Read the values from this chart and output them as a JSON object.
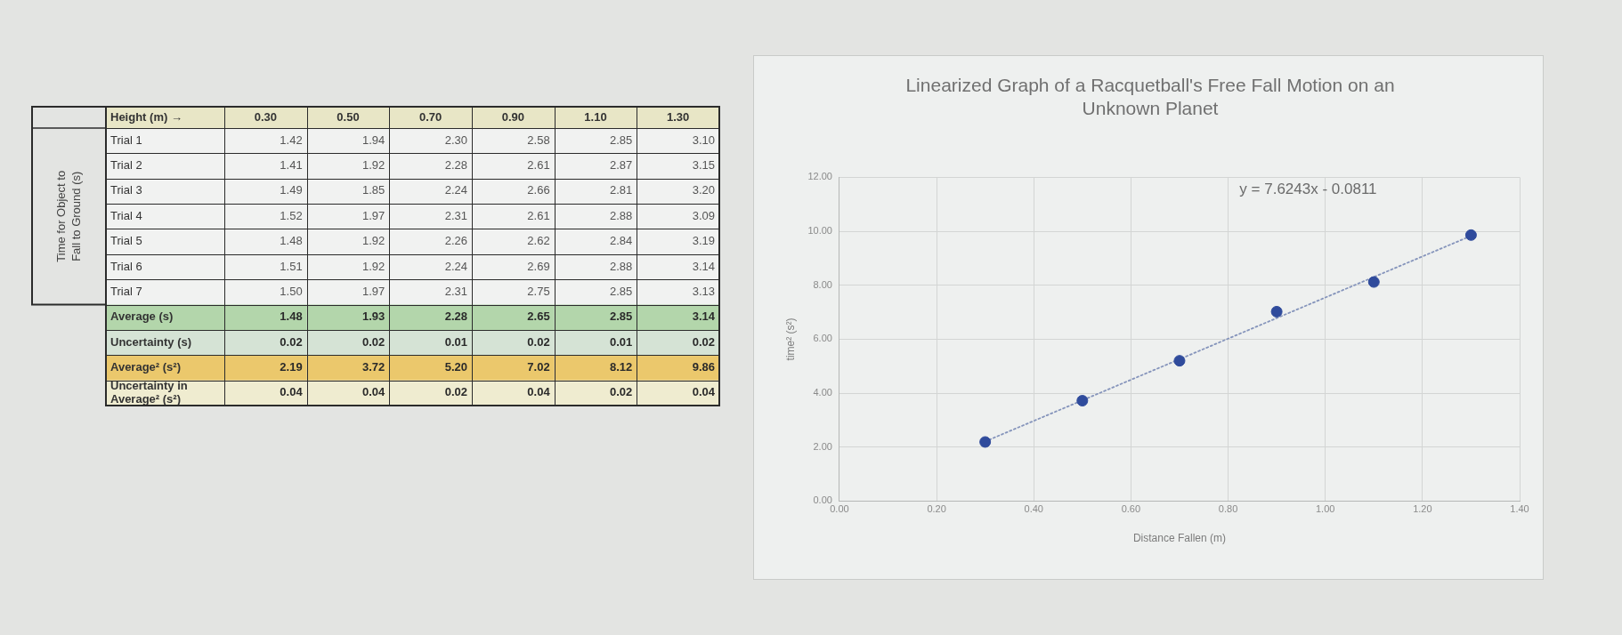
{
  "chart_data": [
    {
      "type": "heatmap",
      "xlabel": "Height (m) →",
      "ylabel": "Time for Object to Fall to Ground (s)",
      "categories": [
        "0.30",
        "0.50",
        "0.70",
        "0.90",
        "1.10",
        "1.30"
      ],
      "y_categories": [
        "Trial 1",
        "Trial 2",
        "Trial 3",
        "Trial 4",
        "Trial 5",
        "Trial 6",
        "Trial 7",
        "Average (s)",
        "Uncertainty (s)",
        "Average² (s²)",
        "Uncertainty in Average² (s²)"
      ],
      "cells": [
        [
          1.42,
          1.94,
          2.3,
          2.58,
          2.85,
          3.1
        ],
        [
          1.41,
          1.92,
          2.28,
          2.61,
          2.87,
          3.15
        ],
        [
          1.49,
          1.85,
          2.24,
          2.66,
          2.81,
          3.2
        ],
        [
          1.52,
          1.97,
          2.31,
          2.61,
          2.88,
          3.09
        ],
        [
          1.48,
          1.92,
          2.26,
          2.62,
          2.84,
          3.19
        ],
        [
          1.51,
          1.92,
          2.24,
          2.69,
          2.88,
          3.14
        ],
        [
          1.5,
          1.97,
          2.31,
          2.75,
          2.85,
          3.13
        ],
        [
          1.48,
          1.93,
          2.28,
          2.65,
          2.85,
          3.14
        ],
        [
          0.02,
          0.02,
          0.01,
          0.02,
          0.01,
          0.02
        ],
        [
          2.19,
          3.72,
          5.2,
          7.02,
          8.12,
          9.86
        ],
        [
          0.04,
          0.04,
          0.02,
          0.04,
          0.02,
          0.04
        ]
      ],
      "cell_labels": [
        [
          "1.42",
          "1.94",
          "2.30",
          "2.58",
          "2.85",
          "3.10"
        ],
        [
          "1.41",
          "1.92",
          "2.28",
          "2.61",
          "2.87",
          "3.15"
        ],
        [
          "1.49",
          "1.85",
          "2.24",
          "2.66",
          "2.81",
          "3.20"
        ],
        [
          "1.52",
          "1.97",
          "2.31",
          "2.61",
          "2.88",
          "3.09"
        ],
        [
          "1.48",
          "1.92",
          "2.26",
          "2.62",
          "2.84",
          "3.19"
        ],
        [
          "1.51",
          "1.92",
          "2.24",
          "2.69",
          "2.88",
          "3.14"
        ],
        [
          "1.50",
          "1.97",
          "2.31",
          "2.75",
          "2.85",
          "3.13"
        ],
        [
          "1.48",
          "1.93",
          "2.28",
          "2.65",
          "2.85",
          "3.14"
        ],
        [
          "0.02",
          "0.02",
          "0.01",
          "0.02",
          "0.01",
          "0.02"
        ],
        [
          "2.19",
          "3.72",
          "5.20",
          "7.02",
          "8.12",
          "9.86"
        ],
        [
          "0.04",
          "0.04",
          "0.02",
          "0.04",
          "0.02",
          "0.04"
        ]
      ],
      "colors": [
        "#f1f2f1",
        "#f1f2f1",
        "#f1f2f1",
        "#f1f2f1",
        "#f1f2f1",
        "#f1f2f1",
        "#f1f2f1",
        "#b3d6ab",
        "#d5e3d5",
        "#ebc86c",
        "#efecd0"
      ],
      "data_labels": true
    },
    {
      "type": "scatter",
      "title": "Linearized Graph of a Racquetball's Free Fall Motion on an Unknown Planet",
      "xlabel": "Distance Fallen (m)",
      "ylabel": "time² (s²)",
      "x": [
        0.3,
        0.5,
        0.7,
        0.9,
        1.1,
        1.3
      ],
      "series": [
        {
          "type": "scatter",
          "color": "#2f4b9c",
          "values": [
            2.19,
            3.72,
            5.2,
            7.02,
            8.12,
            9.86
          ],
          "marker": "circle"
        },
        {
          "type": "line",
          "x": [
            0.3,
            1.3
          ],
          "values": [
            2.21,
            9.83
          ],
          "color": "#8594bb",
          "line_style": "dotted",
          "marker": "none"
        }
      ],
      "xlim": [
        0,
        1.4
      ],
      "xticks": [
        {
          "value": 0,
          "label": "0.00"
        },
        {
          "value": 0.2,
          "label": "0.20"
        },
        {
          "value": 0.4,
          "label": "0.40"
        },
        {
          "value": 0.6,
          "label": "0.60"
        },
        {
          "value": 0.8,
          "label": "0.80"
        },
        {
          "value": 1.0,
          "label": "1.00"
        },
        {
          "value": 1.2,
          "label": "1.20"
        },
        {
          "value": 1.4,
          "label": "1.40"
        }
      ],
      "ylim": [
        0,
        12
      ],
      "yticks": [
        {
          "value": 0,
          "label": "0.00"
        },
        {
          "value": 2,
          "label": "2.00"
        },
        {
          "value": 4,
          "label": "4.00"
        },
        {
          "value": 6,
          "label": "6.00"
        },
        {
          "value": 8,
          "label": "8.00"
        },
        {
          "value": 10,
          "label": "10.00"
        },
        {
          "value": 12,
          "label": "12.00"
        }
      ],
      "grid": true,
      "annotations": [
        "y = 7.6243x - 0.0811"
      ]
    }
  ]
}
